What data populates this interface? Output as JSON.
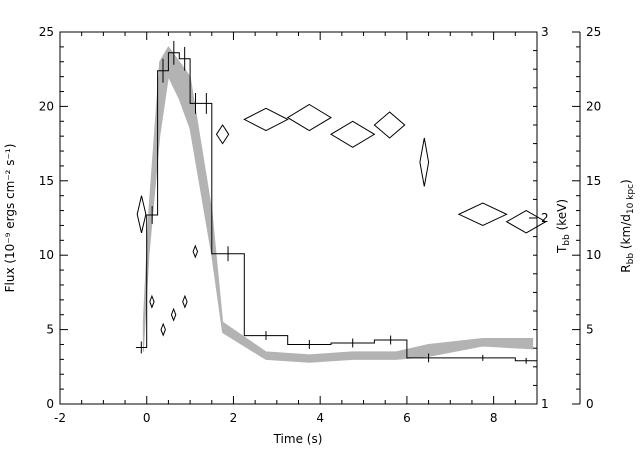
{
  "chart_data": {
    "type": "line",
    "xlabel": "Time (s)",
    "xlim": [
      -2,
      9
    ],
    "x_ticks": [
      -2,
      0,
      2,
      4,
      6,
      8
    ],
    "left_axis": {
      "label": "Flux (10⁻⁹ ergs cm⁻² s⁻¹)",
      "lim": [
        0,
        25
      ],
      "ticks": [
        0,
        5,
        10,
        15,
        20,
        25
      ]
    },
    "inner_right_axis": {
      "label": "T_bb (keV)",
      "lim": [
        1,
        3
      ],
      "ticks": [
        1,
        2,
        3
      ]
    },
    "outer_right_axis": {
      "label": "R_bb (km/d₁₀ kpc)",
      "lim": [
        0,
        25
      ],
      "ticks": [
        0,
        5,
        10,
        15,
        20,
        25
      ]
    },
    "series": [
      {
        "type": "step",
        "axis": "left",
        "bins": [
          {
            "x0": -0.25,
            "x1": -0.0,
            "y": 3.8,
            "err": 0.4
          },
          {
            "x0": 0.0,
            "x1": 0.25,
            "y": 12.7,
            "err": 0.6
          },
          {
            "x0": 0.25,
            "x1": 0.5,
            "y": 22.4,
            "err": 0.8
          },
          {
            "x0": 0.5,
            "x1": 0.75,
            "y": 23.6,
            "err": 0.8
          },
          {
            "x0": 0.75,
            "x1": 1.0,
            "y": 23.2,
            "err": 0.8
          },
          {
            "x0": 1.0,
            "x1": 1.25,
            "y": 20.2,
            "err": 0.7
          },
          {
            "x0": 1.25,
            "x1": 1.5,
            "y": 20.2,
            "err": 0.7
          },
          {
            "x0": 1.5,
            "x1": 2.25,
            "y": 10.1,
            "err": 0.5
          },
          {
            "x0": 2.25,
            "x1": 3.25,
            "y": 4.6,
            "err": 0.3
          },
          {
            "x0": 3.25,
            "x1": 4.25,
            "y": 4.0,
            "err": 0.3
          },
          {
            "x0": 4.25,
            "x1": 5.25,
            "y": 4.1,
            "err": 0.3
          },
          {
            "x0": 5.25,
            "x1": 6.0,
            "y": 4.3,
            "err": 0.3
          },
          {
            "x0": 6.0,
            "x1": 7.0,
            "y": 3.1,
            "err": 0.3
          },
          {
            "x0": 7.0,
            "x1": 8.5,
            "y": 3.1,
            "err": 0.2
          },
          {
            "x0": 8.5,
            "x1": 9.0,
            "y": 2.9,
            "err": 0.2
          }
        ]
      },
      {
        "type": "diamond",
        "axis": "inner_right",
        "points": [
          {
            "x": -0.12,
            "y": 2.02,
            "dx": 0.1,
            "dy": 0.1
          },
          {
            "x": 0.12,
            "y": 1.55,
            "dx": 0.05,
            "dy": 0.03
          },
          {
            "x": 0.38,
            "y": 1.4,
            "dx": 0.05,
            "dy": 0.03
          },
          {
            "x": 0.62,
            "y": 1.48,
            "dx": 0.05,
            "dy": 0.03
          },
          {
            "x": 0.88,
            "y": 1.55,
            "dx": 0.05,
            "dy": 0.03
          },
          {
            "x": 1.12,
            "y": 1.82,
            "dx": 0.05,
            "dy": 0.03
          },
          {
            "x": 1.75,
            "y": 2.45,
            "dx": 0.14,
            "dy": 0.05
          },
          {
            "x": 2.75,
            "y": 2.53,
            "dx": 0.5,
            "dy": 0.06
          },
          {
            "x": 3.75,
            "y": 2.54,
            "dx": 0.5,
            "dy": 0.07
          },
          {
            "x": 4.75,
            "y": 2.45,
            "dx": 0.5,
            "dy": 0.07
          },
          {
            "x": 5.6,
            "y": 2.5,
            "dx": 0.35,
            "dy": 0.07
          },
          {
            "x": 6.4,
            "y": 2.3,
            "dx": 0.1,
            "dy": 0.13
          },
          {
            "x": 7.75,
            "y": 2.02,
            "dx": 0.55,
            "dy": 0.06
          },
          {
            "x": 8.75,
            "y": 1.98,
            "dx": 0.45,
            "dy": 0.06
          }
        ]
      },
      {
        "type": "band",
        "axis": "outer_right",
        "x": [
          -0.08,
          0.05,
          0.3,
          0.5,
          0.75,
          1.0,
          1.5,
          1.75,
          2.75,
          3.75,
          4.75,
          5.75,
          6.5,
          7.75,
          8.9
        ],
        "low": [
          3.5,
          10.0,
          18.0,
          22.0,
          20.5,
          18.5,
          10.0,
          4.8,
          3.0,
          2.8,
          3.0,
          3.0,
          3.2,
          3.9,
          3.7
        ],
        "high": [
          5.5,
          13.0,
          23.0,
          24.0,
          23.0,
          22.0,
          13.0,
          5.5,
          3.5,
          3.3,
          3.5,
          3.5,
          4.0,
          4.4,
          4.4
        ]
      }
    ]
  }
}
